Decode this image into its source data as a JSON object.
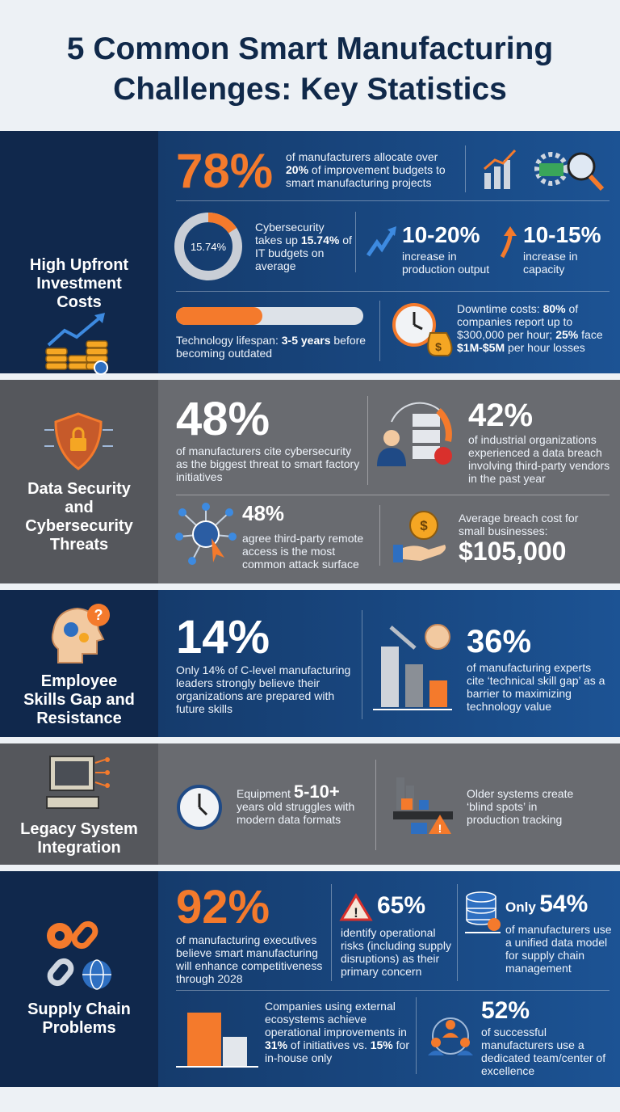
{
  "title_lines": [
    "5 Common Smart Manufacturing",
    "Challenges: Key Statistics"
  ],
  "sections": [
    {
      "label": [
        "High Upfront",
        "Investment",
        "Costs"
      ],
      "stats": [
        {
          "value": "78%",
          "text": [
            "of manufacturers allocate over ",
            "20%",
            " of improvement budgets to smart manufacturing projects"
          ]
        },
        {
          "donut": {
            "value": 15.74,
            "label": "15.74%"
          },
          "text": [
            "Cybersecurity takes up ",
            "15.74%",
            " of IT budgets on average"
          ]
        },
        {
          "value": "10-20%",
          "text": "increase in production output"
        },
        {
          "value": "10-15%",
          "text": "increase in capacity"
        },
        {
          "text": [
            "Technology lifespan: ",
            "3-5 years",
            " before becoming outdated"
          ]
        },
        {
          "text": [
            "Downtime costs: ",
            "80%",
            " of companies report up to $300,000 per hour; ",
            "25%",
            " face ",
            "$1M-$5M",
            " per hour losses"
          ]
        }
      ]
    },
    {
      "label": [
        "Data Security",
        "and",
        "Cybersecurity",
        "Threats"
      ],
      "stats": [
        {
          "value": "48%",
          "text": "of manufacturers cite cybersecurity as the biggest threat to smart factory initiatives"
        },
        {
          "value": "42%",
          "text": "of industrial organizations experienced a data breach involving third-party vendors in the past year"
        },
        {
          "value": "48%",
          "text": "agree third-party remote access is the most common attack surface"
        },
        {
          "text": "Average breach cost for small businesses:",
          "value": "$105,000"
        }
      ]
    },
    {
      "label": [
        "Employee",
        "Skills Gap and",
        "Resistance"
      ],
      "stats": [
        {
          "value": "14%",
          "text": "Only 14% of C-level manufacturing leaders strongly believe their organizations are prepared with future skills"
        },
        {
          "value": "36%",
          "text": "of manufacturing experts cite ‘technical skill gap’ as a barrier to maximizing technology value"
        }
      ]
    },
    {
      "label": [
        "Legacy System",
        "Integration"
      ],
      "stats": [
        {
          "text": [
            "Equipment ",
            "5-10+",
            " years old struggles with modern data formats"
          ]
        },
        {
          "text": "Older systems create ‘blind spots’ in production tracking"
        }
      ]
    },
    {
      "label": [
        "Supply Chain",
        "Problems"
      ],
      "stats": [
        {
          "value": "92%",
          "text": "of manufacturing executives believe smart manufacturing will enhance competitiveness through 2028"
        },
        {
          "value": "65%",
          "text": "identify operational risks (including supply disruptions) as their primary concern"
        },
        {
          "prefix": "Only",
          "value": "54%",
          "text": "of manufacturers use a unified data model for supply chain management"
        },
        {
          "text": [
            "Companies using external ecosystems achieve operational improvements in ",
            "31%",
            " of initiatives vs. ",
            "15%",
            " for in-house only"
          ]
        },
        {
          "value": "52%",
          "text": "of successful manufacturers use a dedicated team/center of excellence"
        }
      ]
    }
  ]
}
